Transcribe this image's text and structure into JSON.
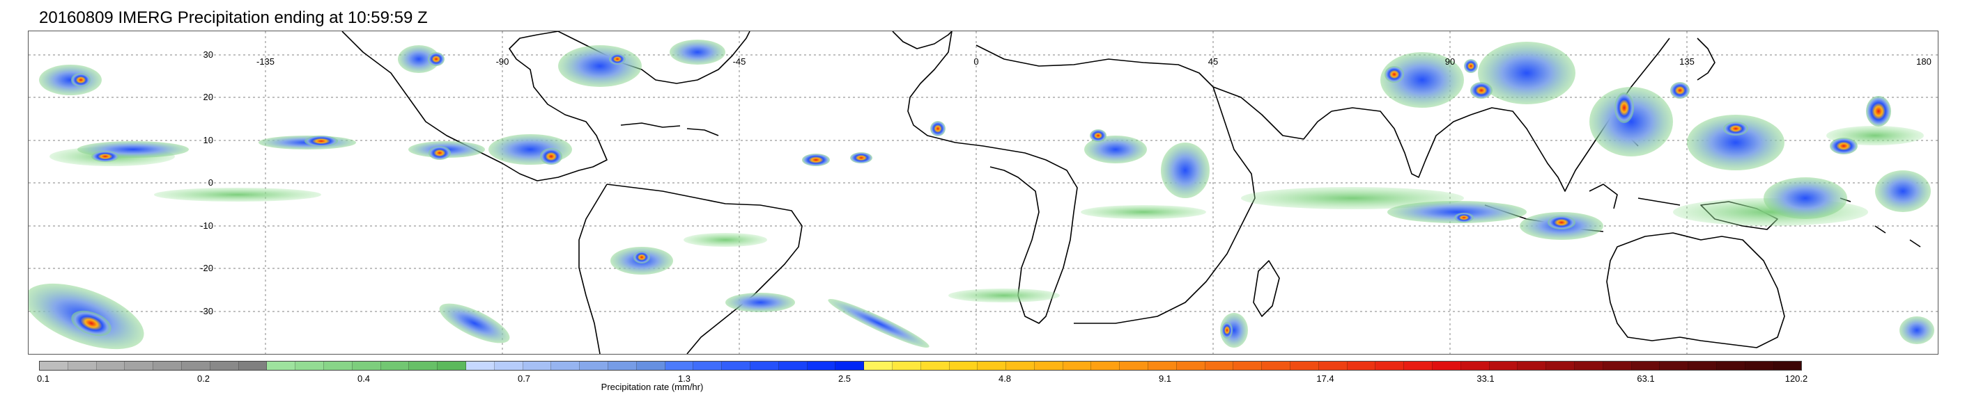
{
  "title": "20160809 IMERG Precipitation ending at 10:59:59 Z",
  "map": {
    "lat_labels": [
      "30",
      "20",
      "10",
      "0",
      "-10",
      "-20",
      "-30"
    ],
    "lon_labels": [
      "-135",
      "-90",
      "-45",
      "0",
      "45",
      "90",
      "135",
      "180"
    ],
    "gridlines": true,
    "grid_style": "dotted",
    "background_color": "#ffffff",
    "coastline_color": "#000000"
  },
  "colorbar": {
    "title": "Precipitation rate (mm/hr)",
    "tick_labels": [
      "0.1",
      "0.2",
      "0.4",
      "0.7",
      "1.3",
      "2.5",
      "4.8",
      "9.1",
      "17.4",
      "33.1",
      "63.1",
      "120.2"
    ],
    "colors": [
      "#bdbdbd",
      "#b4b4b4",
      "#ababab",
      "#a3a3a3",
      "#9a9a9a",
      "#929292",
      "#898989",
      "#808080",
      "#9ee39e",
      "#93dc93",
      "#88d588",
      "#7dce7d",
      "#72c772",
      "#67c067",
      "#5cb95c",
      "#c6d8ff",
      "#b6ccfa",
      "#a6c0f5",
      "#96b4f0",
      "#86a8eb",
      "#769ce6",
      "#6690e1",
      "#4c7bfb",
      "#3f6dfb",
      "#325ffb",
      "#2551fa",
      "#1843fa",
      "#0b35fa",
      "#0027f5",
      "#fff45a",
      "#ffe83e",
      "#ffdc2a",
      "#ffd21c",
      "#ffc818",
      "#ffbe16",
      "#ffb414",
      "#ffaa12",
      "#fea012",
      "#fc9412",
      "#fa8812",
      "#f87c12",
      "#f67012",
      "#f46412",
      "#f25812",
      "#f04c12",
      "#ee4012",
      "#ec3412",
      "#ea2812",
      "#e81c12",
      "#e01010",
      "#c81010",
      "#b80f0f",
      "#a80e0e",
      "#980d0d",
      "#880c0c",
      "#780b0b",
      "#6a0a0a",
      "#600909",
      "#560808",
      "#4c0707",
      "#440606",
      "#3c0505"
    ]
  }
}
